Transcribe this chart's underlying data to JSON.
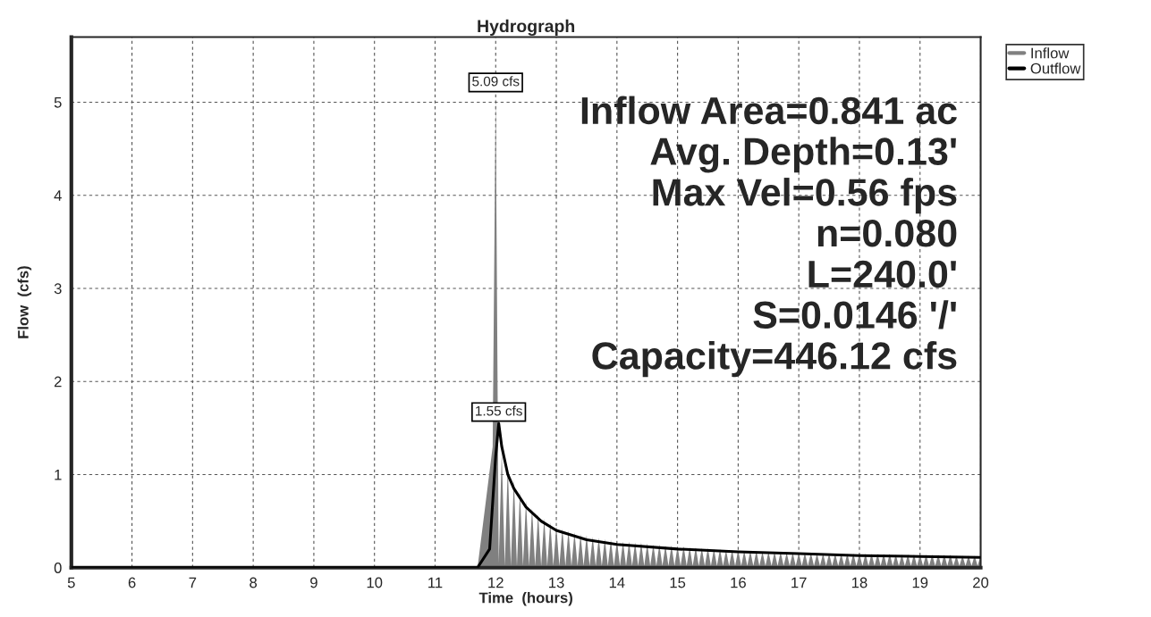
{
  "chart_data": {
    "type": "line",
    "title": "Hydrograph",
    "xlabel": "Time  (hours)",
    "ylabel": "Flow  (cfs)",
    "xlim": [
      5,
      20
    ],
    "xticks": [
      5,
      6,
      7,
      8,
      9,
      10,
      11,
      12,
      13,
      14,
      15,
      16,
      17,
      18,
      19,
      20
    ],
    "ylim": [
      0,
      5.7
    ],
    "yticks": [
      0,
      1,
      2,
      3,
      4,
      5
    ],
    "grid": true,
    "legend": "top right",
    "series": [
      {
        "name": "Inflow",
        "type": "area",
        "color": "#808080",
        "x": [
          5,
          11.7,
          11.95,
          12.0,
          12.05,
          12.1,
          12.15,
          12.2,
          12.25,
          12.3,
          12.35,
          12.4,
          12.45,
          12.5,
          12.55,
          12.6,
          12.65,
          12.7,
          12.75,
          12.8,
          12.85,
          12.9,
          12.95,
          13.0,
          13.05,
          13.1,
          13.15,
          13.2,
          13.25,
          13.3,
          13.35,
          13.4,
          13.45,
          13.5,
          13.55,
          13.6,
          13.65,
          13.7,
          13.75,
          13.8,
          13.85,
          13.9,
          13.95,
          14.0,
          14.05,
          14.1,
          14.15,
          14.2,
          14.25,
          14.3,
          14.35,
          14.4,
          14.45,
          14.5,
          14.55,
          14.6,
          14.65,
          14.7,
          14.75,
          14.8,
          14.85,
          14.9,
          14.95,
          15.0,
          15.05,
          15.1,
          15.15,
          15.2,
          15.25,
          15.3,
          15.35,
          15.4,
          15.45,
          15.5,
          15.55,
          15.6,
          15.65,
          15.7,
          15.75,
          15.8,
          15.85,
          15.9,
          15.95,
          16.0,
          16.05,
          16.1,
          16.15,
          16.2,
          16.25,
          16.3,
          16.35,
          16.4,
          16.45,
          16.5,
          16.55,
          16.6,
          16.65,
          16.7,
          16.75,
          16.8,
          16.85,
          16.9,
          16.95,
          17.0,
          17.05,
          17.1,
          17.15,
          17.2,
          17.25,
          17.3,
          17.35,
          17.4,
          17.45,
          17.5,
          17.55,
          17.6,
          17.65,
          17.7,
          17.75,
          17.8,
          17.85,
          17.9,
          17.95,
          18.0,
          18.05,
          18.1,
          18.15,
          18.2,
          18.25,
          18.3,
          18.35,
          18.4,
          18.45,
          18.5,
          18.55,
          18.6,
          18.65,
          18.7,
          18.75,
          18.8,
          18.85,
          18.9,
          18.95,
          19.0,
          19.05,
          19.1,
          19.15,
          19.2,
          19.25,
          19.3,
          19.35,
          19.4,
          19.45,
          19.5,
          19.55,
          19.6,
          19.65,
          19.7,
          19.75,
          19.8,
          19.85,
          19.9,
          19.95,
          20.0
        ],
        "values": [
          0,
          0,
          1.3,
          5.09,
          0.05,
          1.25,
          0.02,
          1.1,
          0.02,
          0.95,
          0.02,
          0.82,
          0.02,
          0.72,
          0.02,
          0.64,
          0.02,
          0.58,
          0.02,
          0.53,
          0.02,
          0.49,
          0.02,
          0.45,
          0.02,
          0.42,
          0.02,
          0.4,
          0.02,
          0.38,
          0.02,
          0.36,
          0.02,
          0.35,
          0.02,
          0.33,
          0.02,
          0.32,
          0.02,
          0.31,
          0.02,
          0.3,
          0.02,
          0.29,
          0.02,
          0.28,
          0.02,
          0.28,
          0.02,
          0.27,
          0.02,
          0.27,
          0.02,
          0.26,
          0.02,
          0.25,
          0.02,
          0.25,
          0.02,
          0.24,
          0.02,
          0.24,
          0.02,
          0.23,
          0.02,
          0.23,
          0.02,
          0.22,
          0.02,
          0.22,
          0.02,
          0.21,
          0.02,
          0.21,
          0.02,
          0.2,
          0.02,
          0.2,
          0.02,
          0.19,
          0.02,
          0.19,
          0.02,
          0.19,
          0.02,
          0.18,
          0.02,
          0.18,
          0.02,
          0.18,
          0.02,
          0.17,
          0.02,
          0.17,
          0.02,
          0.17,
          0.02,
          0.17,
          0.02,
          0.16,
          0.02,
          0.16,
          0.02,
          0.16,
          0.02,
          0.16,
          0.02,
          0.16,
          0.02,
          0.15,
          0.02,
          0.15,
          0.02,
          0.15,
          0.02,
          0.15,
          0.02,
          0.15,
          0.02,
          0.15,
          0.02,
          0.15,
          0.02,
          0.15,
          0.02,
          0.15,
          0.02,
          0.15,
          0.02,
          0.15,
          0.02,
          0.15,
          0.02,
          0.15,
          0.02,
          0.14,
          0.02,
          0.14,
          0.02,
          0.14,
          0.02,
          0.14,
          0.02,
          0.14,
          0.02,
          0.14,
          0.02,
          0.14,
          0.02,
          0.14,
          0.02,
          0.14,
          0.02,
          0.14,
          0.02,
          0.13,
          0.02,
          0.13,
          0.02,
          0.13,
          0.02,
          0.13,
          0.02,
          0.13
        ]
      },
      {
        "name": "Outflow",
        "color": "#000000",
        "x": [
          5,
          11.7,
          11.9,
          12.0,
          12.05,
          12.1,
          12.2,
          12.3,
          12.5,
          12.75,
          13.0,
          13.5,
          14.0,
          15.0,
          16.0,
          17.0,
          18.0,
          19.0,
          20.0
        ],
        "values": [
          0,
          0,
          0.2,
          1.2,
          1.55,
          1.3,
          1.0,
          0.85,
          0.65,
          0.5,
          0.4,
          0.3,
          0.25,
          0.2,
          0.17,
          0.15,
          0.13,
          0.12,
          0.11
        ]
      }
    ],
    "annotations": [
      {
        "text": "5.09 cfs",
        "x": 12.0,
        "y": 5.09
      },
      {
        "text": "1.55 cfs",
        "x": 12.05,
        "y": 1.55
      },
      "Inflow Area=0.841 ac",
      "Avg. Depth=0.13'",
      "Max Vel=0.56 fps",
      "n=0.080",
      "L=240.0'",
      "S=0.0146 '/'",
      "Capacity=446.12 cfs"
    ]
  }
}
